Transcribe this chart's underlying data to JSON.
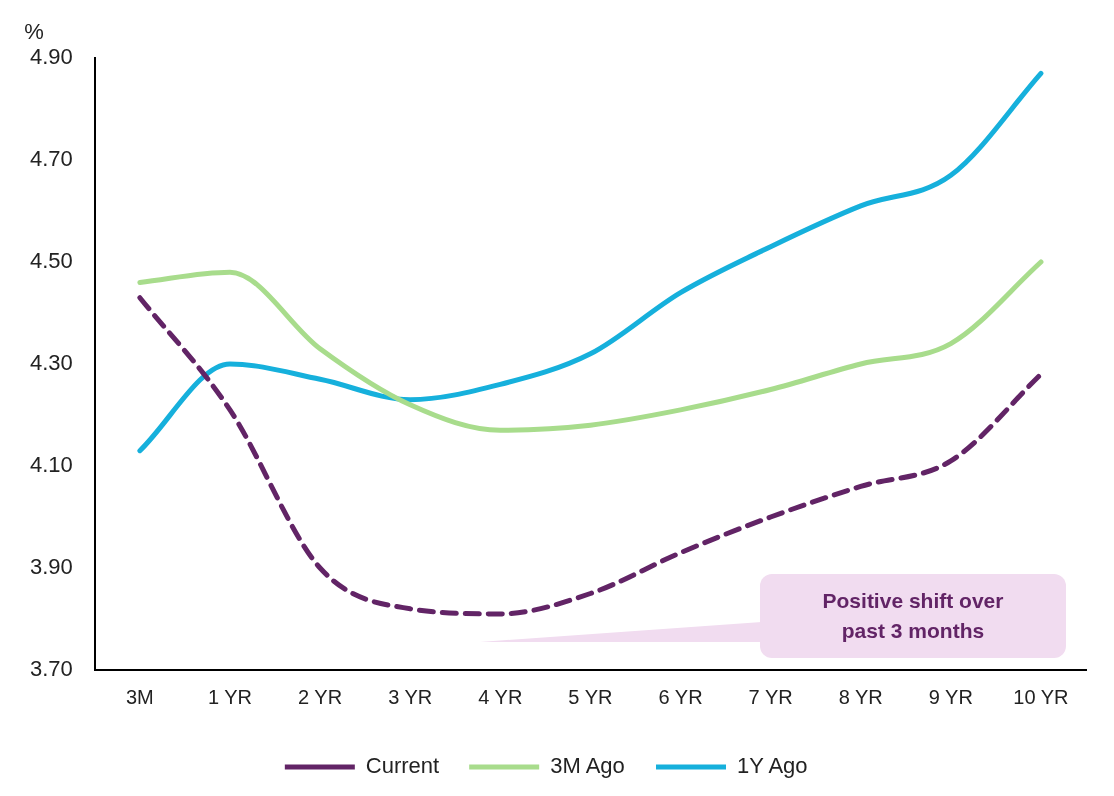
{
  "chart_data": {
    "type": "line",
    "ylabel": "%",
    "categories": [
      "3M",
      "1 YR",
      "2 YR",
      "3 YR",
      "4 YR",
      "5 YR",
      "6 YR",
      "7 YR",
      "8 YR",
      "9 YR",
      "10 YR"
    ],
    "series": [
      {
        "name": "Current",
        "color": "#622466",
        "line_style": "dashed",
        "values": [
          4.43,
          4.21,
          3.9,
          3.82,
          3.81,
          3.85,
          3.93,
          4.0,
          4.06,
          4.11,
          4.28
        ]
      },
      {
        "name": "3M Ago",
        "color": "#a8dc8c",
        "line_style": "solid",
        "values": [
          4.46,
          4.48,
          4.33,
          4.22,
          4.17,
          4.18,
          4.21,
          4.25,
          4.3,
          4.34,
          4.5
        ]
      },
      {
        "name": "1Y Ago",
        "color": "#16b0dc",
        "line_style": "solid",
        "values": [
          4.13,
          4.3,
          4.27,
          4.23,
          4.26,
          4.32,
          4.44,
          4.53,
          4.61,
          4.67,
          4.87
        ]
      }
    ],
    "ylim": [
      3.7,
      4.9
    ],
    "yticks": [
      {
        "value": 3.7,
        "label": "3.70"
      },
      {
        "value": 3.9,
        "label": "3.90"
      },
      {
        "value": 4.1,
        "label": "4.10"
      },
      {
        "value": 4.3,
        "label": "4.30"
      },
      {
        "value": 4.5,
        "label": "4.50"
      },
      {
        "value": 4.7,
        "label": "4.70"
      },
      {
        "value": 4.9,
        "label": "4.90"
      }
    ],
    "grid": false,
    "legend": "bottom",
    "marker": "none",
    "annotations": [
      "Positive shift over past 3 months"
    ]
  }
}
